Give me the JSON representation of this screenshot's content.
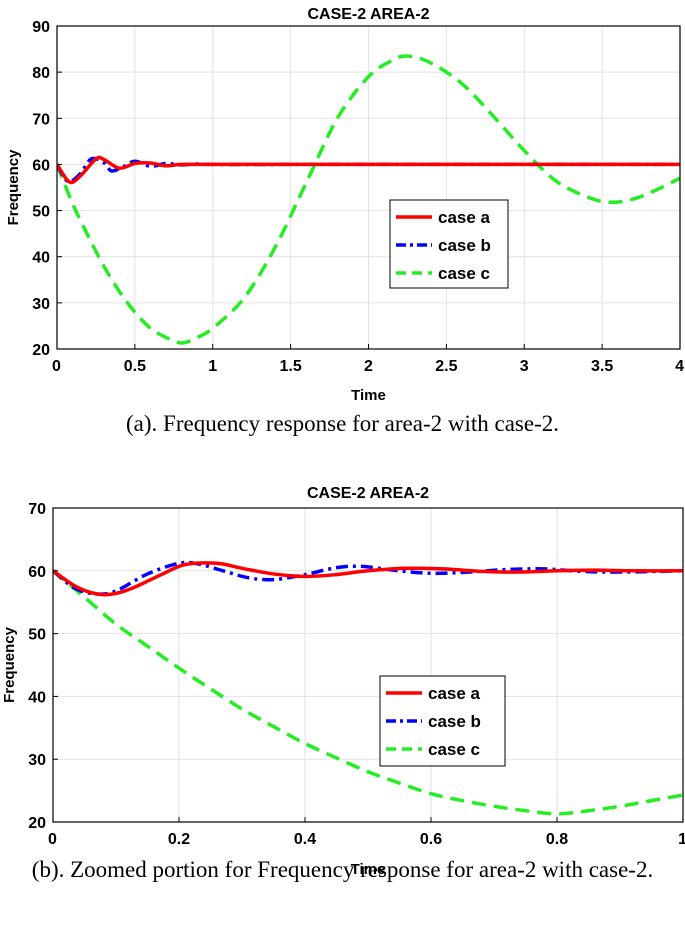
{
  "chart_data": [
    {
      "type": "line",
      "title": "CASE-2 AREA-2",
      "xlabel": "Time",
      "ylabel": "Frequency",
      "xlim": [
        0,
        4
      ],
      "ylim": [
        20,
        90
      ],
      "xticks": [
        0,
        0.5,
        1,
        1.5,
        2,
        2.5,
        3,
        3.5,
        4
      ],
      "xtick_labels": [
        "0",
        "0.5",
        "1",
        "1.5",
        "2",
        "2.5",
        "3",
        "3.5",
        "4"
      ],
      "yticks": [
        20,
        30,
        40,
        50,
        60,
        70,
        80,
        90
      ],
      "ytick_labels": [
        "20",
        "30",
        "40",
        "50",
        "60",
        "70",
        "80",
        "90"
      ],
      "grid": true,
      "legend_position": "center-right",
      "series": [
        {
          "name": "case a",
          "color": "#ff0000",
          "style": "solid",
          "x": [
            0,
            0.08,
            0.15,
            0.25,
            0.3,
            0.4,
            0.5,
            0.6,
            0.7,
            0.8,
            1.0,
            1.5,
            2,
            3,
            4
          ],
          "y": [
            60,
            56.2,
            57.5,
            61.2,
            61.1,
            59.2,
            60.2,
            60.3,
            59.7,
            60.0,
            60,
            60,
            60,
            60,
            60
          ]
        },
        {
          "name": "case b",
          "color": "#0000ff",
          "style": "dashdot",
          "x": [
            0,
            0.07,
            0.15,
            0.22,
            0.3,
            0.35,
            0.42,
            0.5,
            0.6,
            0.7,
            0.8,
            0.9,
            1.0,
            1.5,
            2,
            3,
            4
          ],
          "y": [
            60,
            56.3,
            58.0,
            61.2,
            60.4,
            58.6,
            59.4,
            60.7,
            59.6,
            60.2,
            59.9,
            60.1,
            60,
            60,
            60,
            60,
            60
          ]
        },
        {
          "name": "case c",
          "color": "#22ee22",
          "style": "dashed",
          "x": [
            0,
            0.1,
            0.2,
            0.3,
            0.4,
            0.5,
            0.6,
            0.7,
            0.8,
            0.9,
            1.0,
            1.2,
            1.4,
            1.6,
            1.8,
            2.0,
            2.15,
            2.25,
            2.4,
            2.6,
            2.8,
            3.0,
            3.2,
            3.4,
            3.55,
            3.7,
            3.85,
            4.0
          ],
          "y": [
            60,
            51.5,
            44.5,
            38,
            32.5,
            28,
            24.5,
            22.5,
            21.3,
            22.5,
            24.5,
            31,
            42,
            56,
            70,
            79,
            82.5,
            83.5,
            82,
            77.5,
            70.5,
            63,
            56.5,
            53,
            51.8,
            52.5,
            54.5,
            57
          ]
        }
      ]
    },
    {
      "type": "line",
      "title": "CASE-2 AREA-2",
      "xlabel": "Time",
      "ylabel": "Frequency",
      "xlim": [
        0,
        1
      ],
      "ylim": [
        20,
        70
      ],
      "xticks": [
        0,
        0.2,
        0.4,
        0.6,
        0.8,
        1
      ],
      "xtick_labels": [
        "0",
        "0.2",
        "0.4",
        "0.6",
        "0.8",
        "1"
      ],
      "yticks": [
        20,
        30,
        40,
        50,
        60,
        70
      ],
      "ytick_labels": [
        "20",
        "30",
        "40",
        "50",
        "60",
        "70"
      ],
      "grid": true,
      "legend_position": "center-right",
      "series": [
        {
          "name": "case a",
          "color": "#ff0000",
          "style": "solid",
          "x": [
            0,
            0.04,
            0.08,
            0.12,
            0.17,
            0.21,
            0.26,
            0.3,
            0.35,
            0.4,
            0.45,
            0.5,
            0.56,
            0.62,
            0.68,
            0.74,
            0.8,
            0.86,
            0.92,
            1.0
          ],
          "y": [
            60,
            57.3,
            56.2,
            57.0,
            59.3,
            61.0,
            61.2,
            60.4,
            59.5,
            59.1,
            59.4,
            60.0,
            60.4,
            60.3,
            59.9,
            59.8,
            60.0,
            60.1,
            60.0,
            60.0
          ]
        },
        {
          "name": "case b",
          "color": "#0000ff",
          "style": "dashdot",
          "x": [
            0,
            0.035,
            0.07,
            0.1,
            0.15,
            0.2,
            0.23,
            0.27,
            0.31,
            0.35,
            0.4,
            0.45,
            0.49,
            0.54,
            0.6,
            0.66,
            0.72,
            0.78,
            0.84,
            0.9,
            1.0
          ],
          "y": [
            60,
            57.2,
            56.3,
            56.8,
            59.5,
            61.2,
            61.1,
            60.0,
            58.9,
            58.6,
            59.4,
            60.5,
            60.7,
            60.1,
            59.6,
            59.8,
            60.2,
            60.3,
            59.9,
            59.8,
            60.0
          ]
        },
        {
          "name": "case c",
          "color": "#22ee22",
          "style": "dashed",
          "x": [
            0,
            0.05,
            0.1,
            0.15,
            0.2,
            0.25,
            0.3,
            0.35,
            0.4,
            0.45,
            0.5,
            0.55,
            0.6,
            0.65,
            0.7,
            0.75,
            0.8,
            0.85,
            0.9,
            0.95,
            1.0
          ],
          "y": [
            60,
            55.8,
            51.5,
            48.0,
            44.5,
            41.2,
            38.0,
            35.2,
            32.5,
            30.2,
            28.0,
            26.2,
            24.5,
            23.4,
            22.5,
            21.8,
            21.3,
            21.8,
            22.5,
            23.4,
            24.3
          ]
        }
      ]
    }
  ],
  "captions": {
    "a": "(a). Frequency response for area-2 with case-2.",
    "b": "(b). Zoomed portion for Frequency response for area-2 with case-2."
  }
}
